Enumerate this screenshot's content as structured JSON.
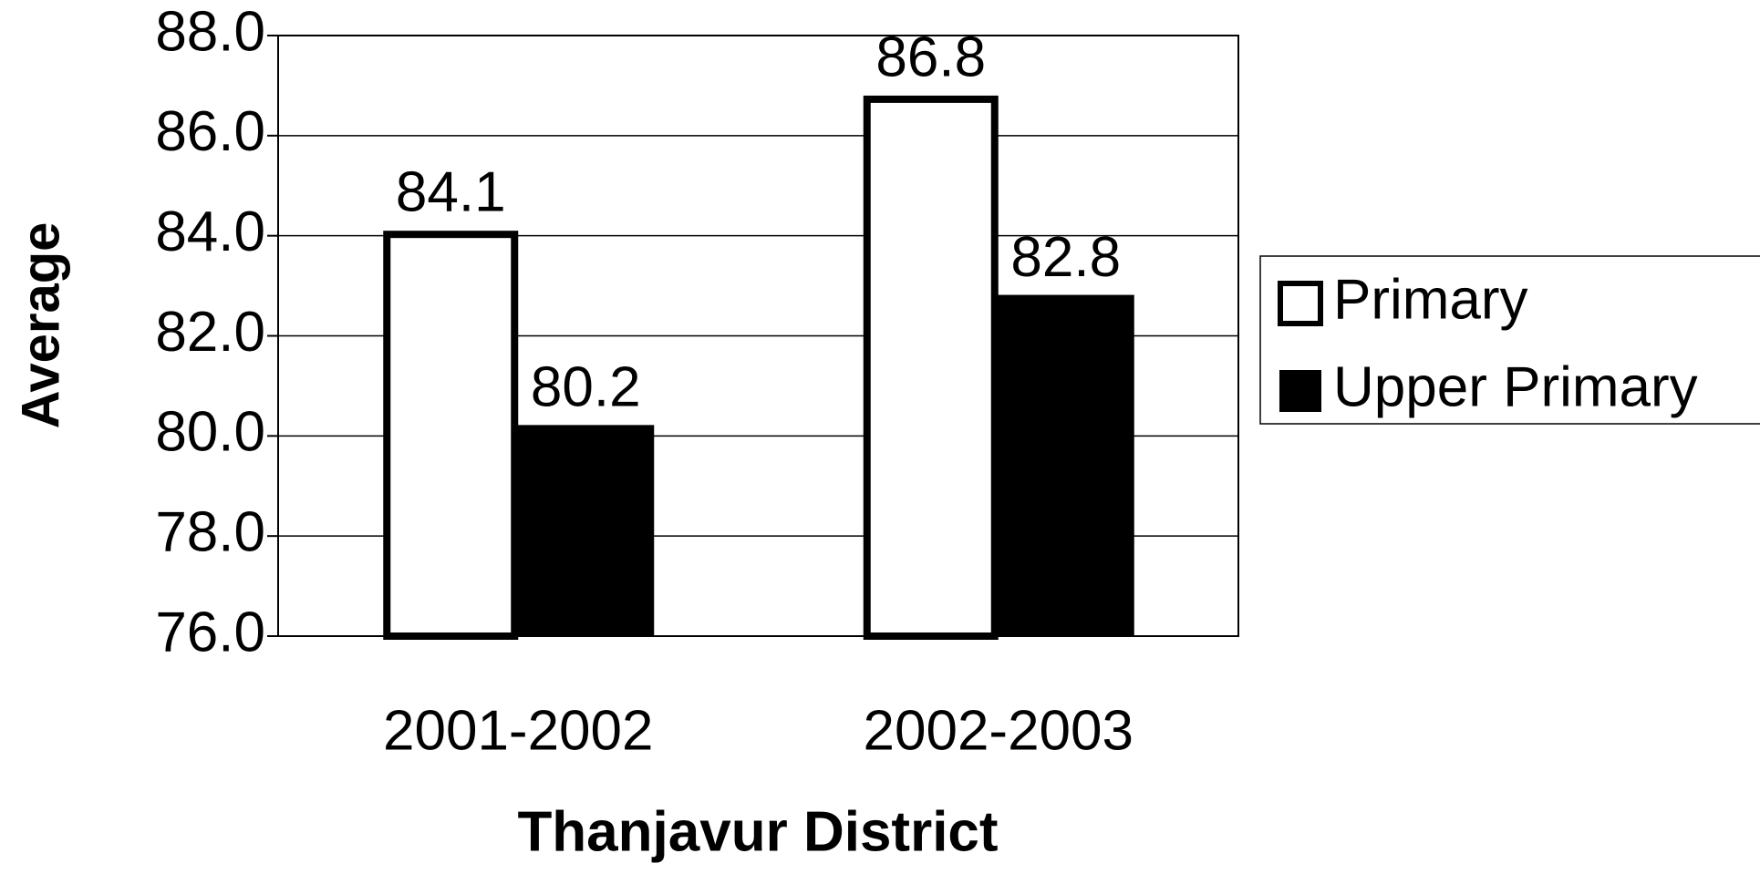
{
  "chart_data": {
    "type": "bar",
    "x_label": "Thanjavur District",
    "y_label": "Average",
    "categories": [
      "2001-2002",
      "2002-2003"
    ],
    "series": [
      {
        "name": "Primary",
        "color": "#ffffff",
        "values": [
          84.1,
          86.8
        ]
      },
      {
        "name": "Upper Primary",
        "color": "#000000",
        "values": [
          80.2,
          82.8
        ]
      }
    ],
    "ylim": [
      76,
      88
    ],
    "yticks": [
      {
        "value": 76,
        "label": "76.0"
      },
      {
        "value": 78,
        "label": "78.0"
      },
      {
        "value": 80,
        "label": "80.0"
      },
      {
        "value": 82,
        "label": "82.0"
      },
      {
        "value": 84,
        "label": "84.0"
      },
      {
        "value": 86,
        "label": "86.0"
      },
      {
        "value": 88,
        "label": "88.0"
      }
    ],
    "grid": true,
    "legend": "right"
  }
}
